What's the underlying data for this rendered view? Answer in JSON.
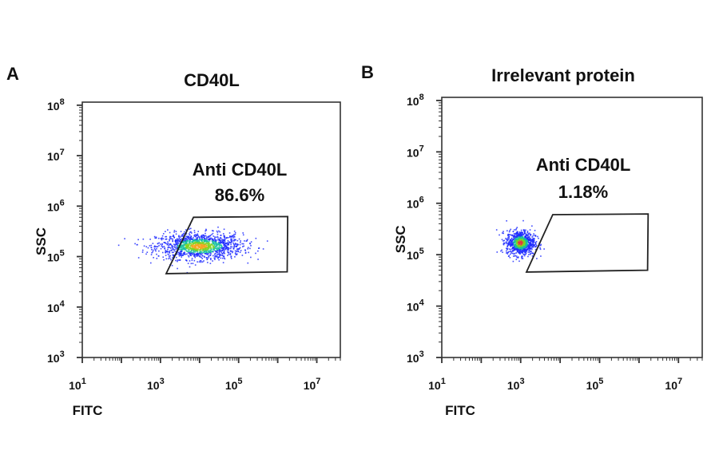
{
  "chart_data": [
    {
      "type": "scatter",
      "panel_label": "A",
      "title": "CD40L",
      "xlabel": "FITC",
      "ylabel": "SSC",
      "xscale": "log",
      "yscale": "log",
      "xlim": [
        10,
        40000000
      ],
      "ylim": [
        1000,
        115000000
      ],
      "tick_base": "10",
      "x_tick_exponents": [
        1,
        3,
        5,
        7
      ],
      "y_tick_exponents": [
        3,
        4,
        5,
        6,
        7,
        8
      ],
      "grid": false,
      "gate": {
        "name": "Anti CD40L",
        "percent": "86.6%",
        "vertices_fitc_ssc": [
          [
            1400,
            46000
          ],
          [
            7000,
            600000
          ],
          [
            1800000,
            620000
          ],
          [
            1750000,
            50000
          ]
        ]
      },
      "population": {
        "center_fitc": 10000,
        "center_ssc": 160000,
        "spread_log_fitc": 0.55,
        "spread_log_ssc": 0.13,
        "count": 1400
      },
      "colors": {
        "low": "#1f2bff",
        "mid": "#18c0a0",
        "high": "#7ed321",
        "peak": "#f5a623",
        "gate": "#222222"
      }
    },
    {
      "type": "scatter",
      "panel_label": "B",
      "title": "Irrelevant protein",
      "xlabel": "FITC",
      "ylabel": "SSC",
      "xscale": "log",
      "yscale": "log",
      "xlim": [
        10,
        40000000
      ],
      "ylim": [
        1000,
        115000000
      ],
      "tick_base": "10",
      "x_tick_exponents": [
        1,
        3,
        5,
        7
      ],
      "y_tick_exponents": [
        3,
        4,
        5,
        6,
        7,
        8
      ],
      "grid": false,
      "gate": {
        "name": "Anti CD40L",
        "percent": "1.18%",
        "vertices_fitc_ssc": [
          [
            1400,
            46000
          ],
          [
            6500,
            600000
          ],
          [
            1700000,
            620000
          ],
          [
            1650000,
            50000
          ]
        ]
      },
      "population": {
        "center_fitc": 1000,
        "center_ssc": 170000,
        "spread_log_fitc": 0.18,
        "spread_log_ssc": 0.12,
        "count": 900
      },
      "colors": {
        "low": "#1f2bff",
        "mid": "#18c0a0",
        "high": "#7ed321",
        "peak": "#e0403a",
        "gate": "#222222"
      }
    }
  ]
}
